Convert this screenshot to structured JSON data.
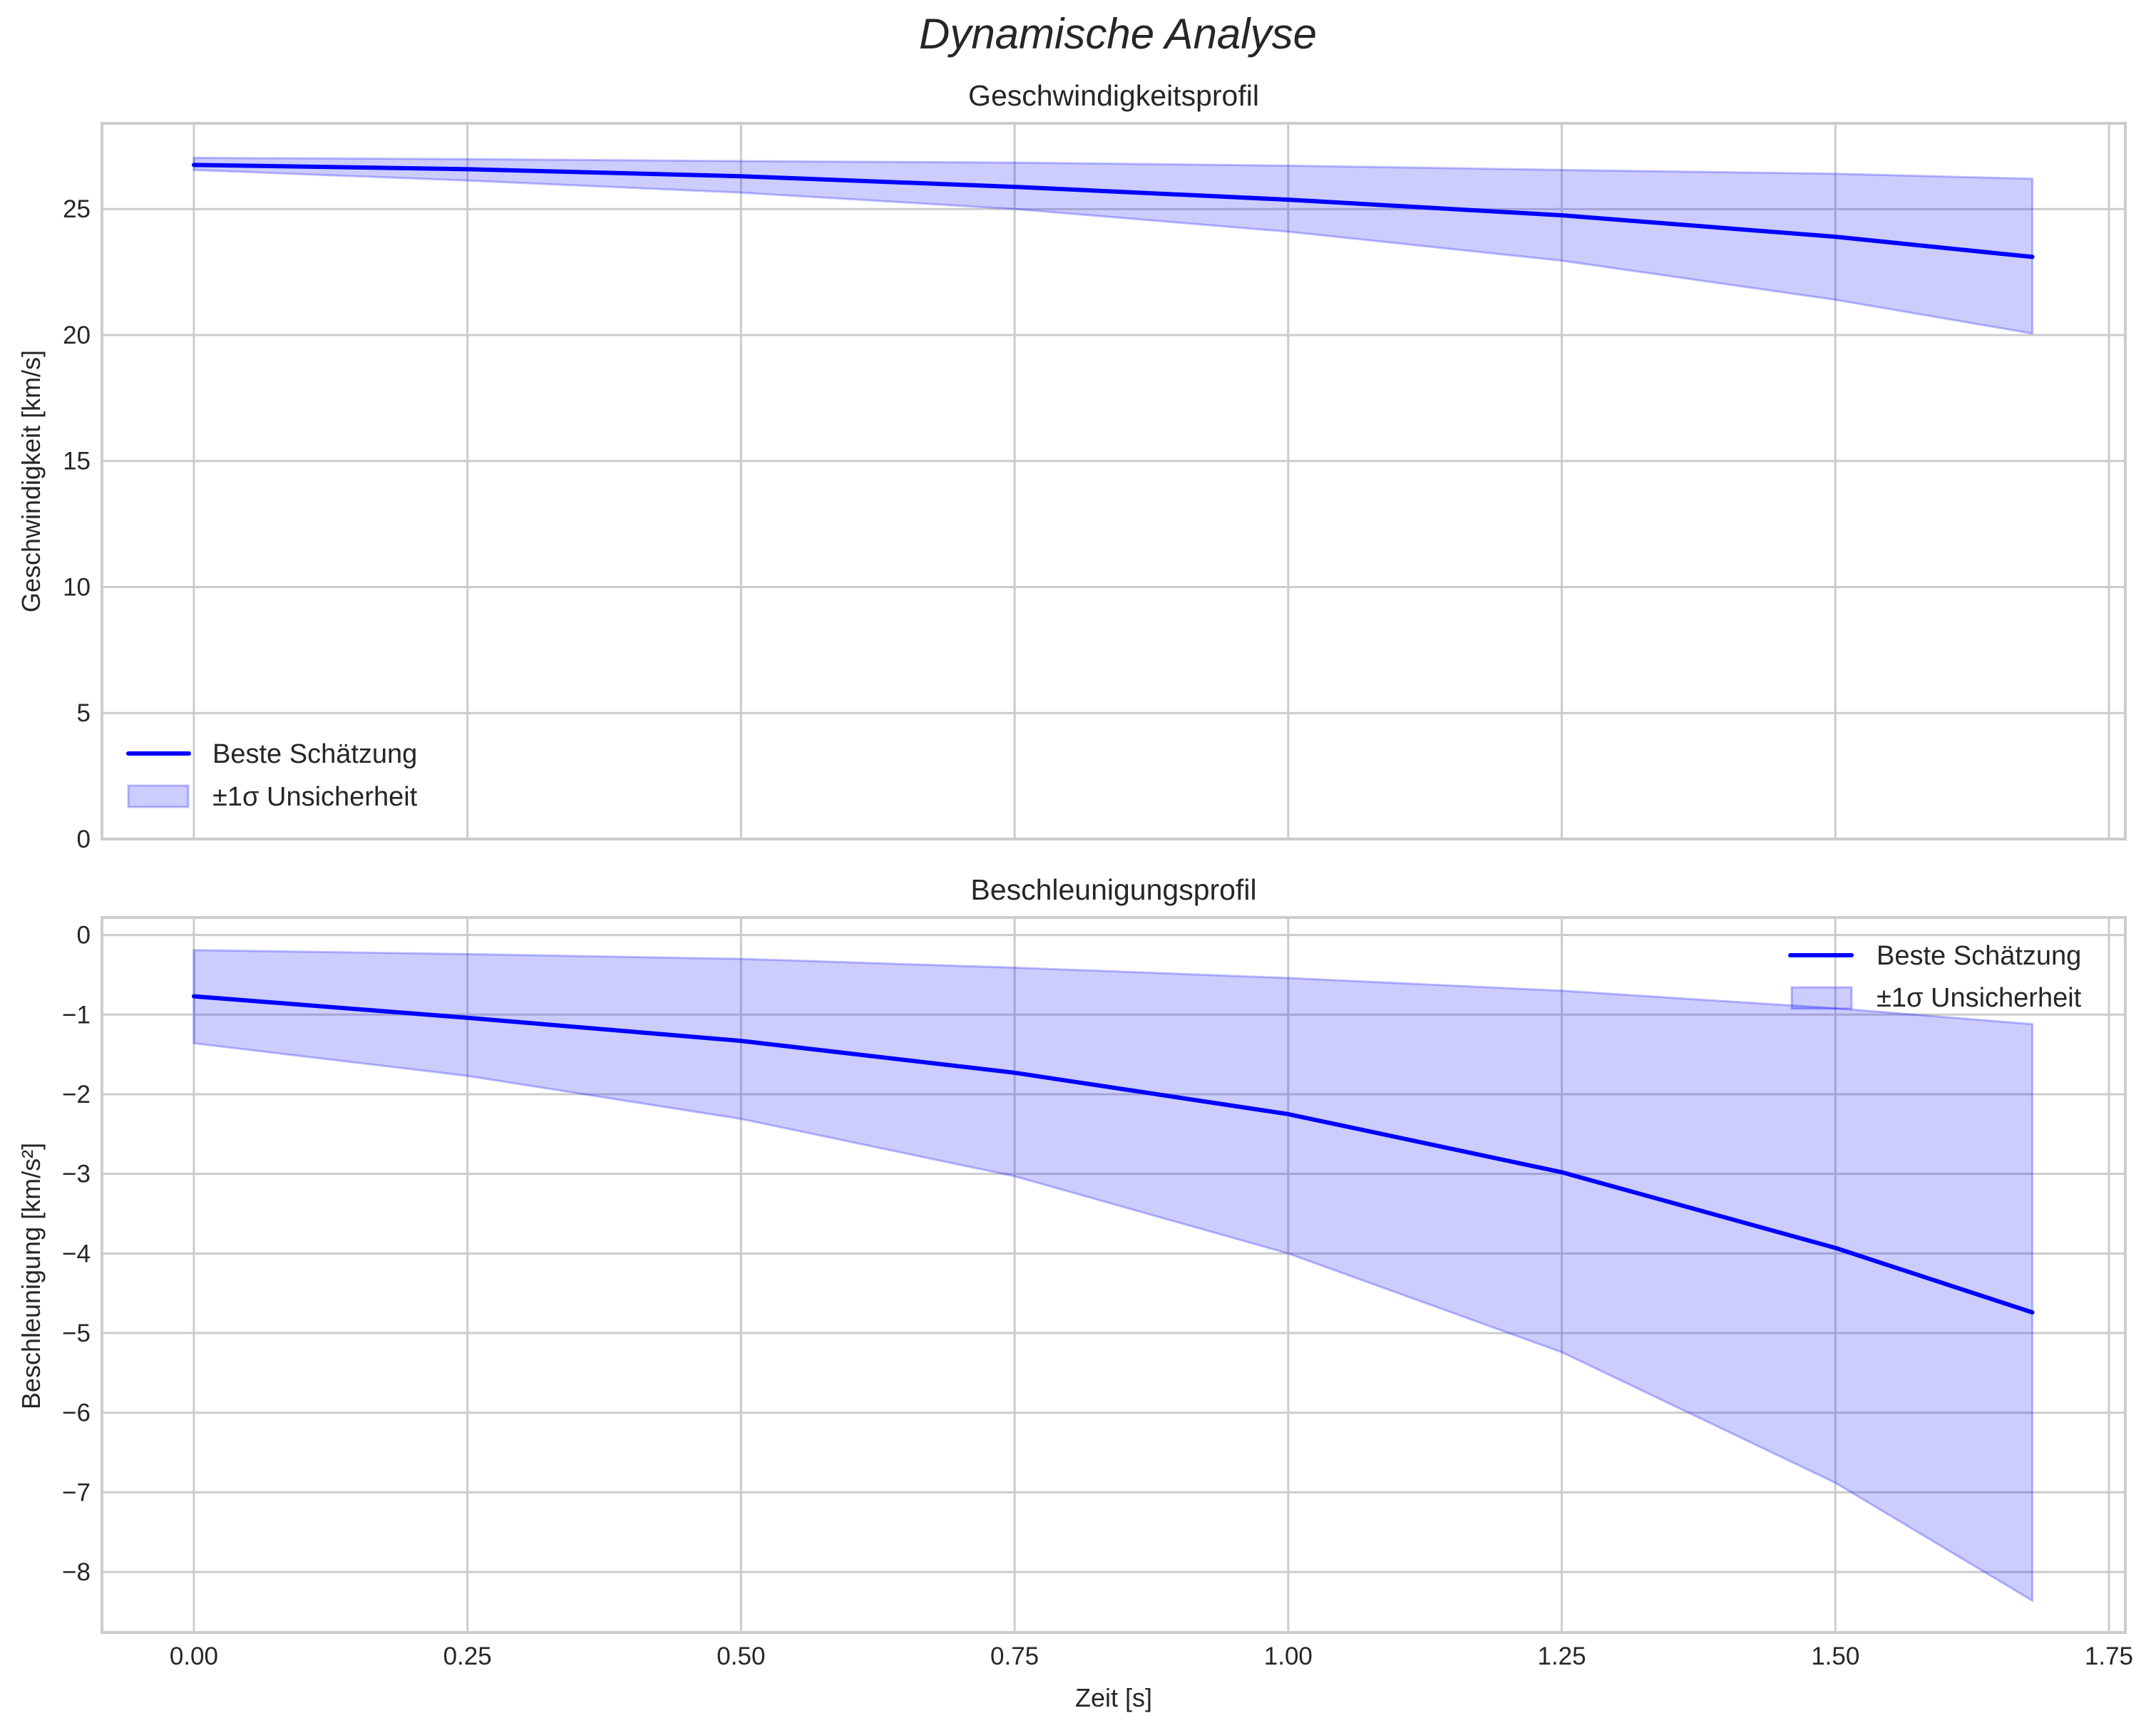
{
  "figure": {
    "suptitle": "Dynamische Analyse",
    "xlabel": "Zeit [s]",
    "colors": {
      "line": "#0000ff",
      "band_fill": "#0000ff",
      "band_alpha": 0.2,
      "grid": "#cccccc",
      "text": "#262626"
    }
  },
  "chart_data": [
    {
      "type": "line",
      "title": "Geschwindigkeitsprofil",
      "xlabel": "",
      "ylabel": "Geschwindigkeit [km/s]",
      "xlim": [
        -0.084,
        1.765
      ],
      "ylim": [
        0,
        28.4
      ],
      "xticks": [
        0.0,
        0.25,
        0.5,
        0.75,
        1.0,
        1.25,
        1.5,
        1.75
      ],
      "xtick_labels": [],
      "yticks": [
        0,
        5,
        10,
        15,
        20,
        25
      ],
      "ytick_labels": [
        "0",
        "5",
        "10",
        "15",
        "20",
        "25"
      ],
      "grid": true,
      "legend": {
        "position": "lower left",
        "entries": [
          "Beste Schätzung",
          "±1σ Unsicherheit"
        ]
      },
      "x": [
        0.0,
        0.25,
        0.5,
        0.75,
        1.0,
        1.25,
        1.5,
        1.68
      ],
      "series": [
        {
          "name": "Beste Schätzung",
          "kind": "line",
          "values": [
            26.75,
            26.58,
            26.3,
            25.88,
            25.37,
            24.75,
            23.9,
            23.1
          ]
        },
        {
          "name": "±1σ Unsicherheit",
          "kind": "band",
          "upper": [
            27.03,
            26.98,
            26.9,
            26.84,
            26.72,
            26.55,
            26.4,
            26.2
          ],
          "lower": [
            26.55,
            26.13,
            25.65,
            25.0,
            24.1,
            22.95,
            21.4,
            20.06
          ]
        }
      ]
    },
    {
      "type": "line",
      "title": "Beschleunigungsprofil",
      "xlabel": "Zeit [s]",
      "ylabel": "Beschleunigung [km/s²]",
      "xlim": [
        -0.084,
        1.765
      ],
      "ylim": [
        -8.76,
        0.22
      ],
      "xticks": [
        0.0,
        0.25,
        0.5,
        0.75,
        1.0,
        1.25,
        1.5,
        1.75
      ],
      "xtick_labels": [
        "0.00",
        "0.25",
        "0.50",
        "0.75",
        "1.00",
        "1.25",
        "1.50",
        "1.75"
      ],
      "yticks": [
        0,
        -1,
        -2,
        -3,
        -4,
        -5,
        -6,
        -7,
        -8
      ],
      "ytick_labels": [
        "0",
        "−1",
        "−2",
        "−3",
        "−4",
        "−5",
        "−6",
        "−7",
        "−8"
      ],
      "grid": true,
      "legend": {
        "position": "upper right",
        "entries": [
          "Beste Schätzung",
          "±1σ Unsicherheit"
        ]
      },
      "x": [
        0.0,
        0.25,
        0.5,
        0.75,
        1.0,
        1.25,
        1.5,
        1.68
      ],
      "series": [
        {
          "name": "Beste Schätzung",
          "kind": "line",
          "values": [
            -0.77,
            -1.04,
            -1.33,
            -1.73,
            -2.25,
            -2.98,
            -3.93,
            -4.74
          ]
        },
        {
          "name": "±1σ Unsicherheit",
          "kind": "band",
          "upper": [
            -0.19,
            -0.24,
            -0.3,
            -0.41,
            -0.54,
            -0.7,
            -0.92,
            -1.12
          ],
          "lower": [
            -1.36,
            -1.77,
            -2.31,
            -3.03,
            -4.0,
            -5.24,
            -6.88,
            -8.36
          ]
        }
      ]
    }
  ]
}
